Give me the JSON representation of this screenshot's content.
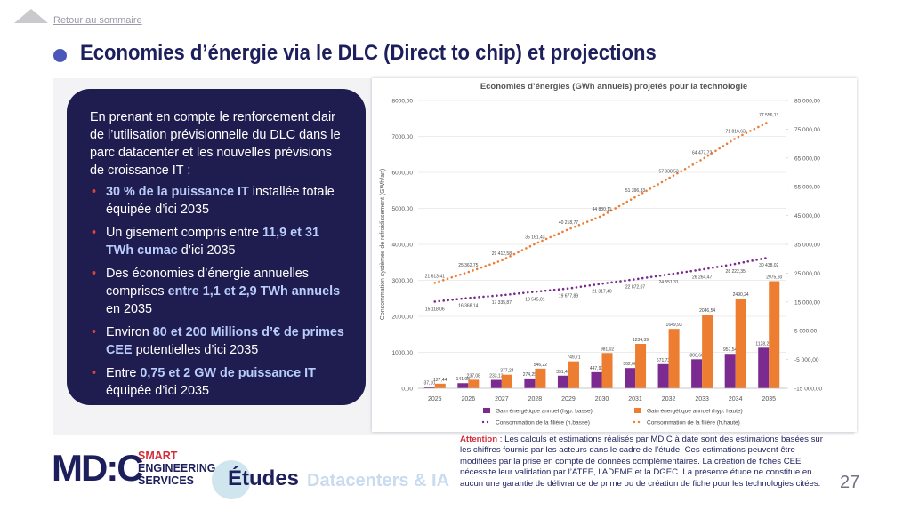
{
  "header": {
    "back_link": "Retour au sommaire",
    "title": "Economies d’énergie via le DLC (Direct to chip) et projections"
  },
  "summary": {
    "intro": "En prenant en compte le renforcement clair de l’utilisation prévisionnelle du DLC dans le parc datacenter et les nouvelles prévisions de croissance IT :",
    "bullets": [
      [
        {
          "text": "30 % de la puissance IT",
          "em": true
        },
        {
          "text": " installée totale équipée d’ici 2035",
          "em": false
        }
      ],
      [
        {
          "text": "Un gisement compris entre ",
          "em": false
        },
        {
          "text": "11,9 et 31 TWh cumac",
          "em": true
        },
        {
          "text": " d’ici 2035",
          "em": false
        }
      ],
      [
        {
          "text": "Des économies d’énergie annuelles comprises ",
          "em": false
        },
        {
          "text": "entre 1,1 et 2,9 TWh annuels",
          "em": true
        },
        {
          "text": " en 2035",
          "em": false
        }
      ],
      [
        {
          "text": "Environ ",
          "em": false
        },
        {
          "text": "80 et 200 Millions d’€ de primes CEE",
          "em": true
        },
        {
          "text": " potentielles d’ici 2035",
          "em": false
        }
      ],
      [
        {
          "text": "Entre ",
          "em": false
        },
        {
          "text": "0,75 et 2 GW de puissance IT",
          "em": true
        },
        {
          "text": " équipée d’ici 2035",
          "em": false
        }
      ]
    ]
  },
  "chart_data": {
    "type": "bar",
    "title": "Economies d’énergies (GWh annuels) projetés pour la technologie",
    "y_label": "Consommation systèmes de refroidissement (GWh/an)",
    "categories": [
      "2025",
      "2026",
      "2027",
      "2028",
      "2029",
      "2030",
      "2031",
      "2032",
      "2033",
      "2034",
      "2035"
    ],
    "ylim": [
      0,
      8000
    ],
    "yticks": [
      {
        "value": 0,
        "label": "0,00"
      },
      {
        "value": 1000,
        "label": "1000,00"
      },
      {
        "value": 2000,
        "label": "2000,00"
      },
      {
        "value": 3000,
        "label": "3000,00"
      },
      {
        "value": 4000,
        "label": "4000,00"
      },
      {
        "value": 5000,
        "label": "5000,00"
      },
      {
        "value": 6000,
        "label": "6000,00"
      },
      {
        "value": 7000,
        "label": "7000,00"
      },
      {
        "value": 8000,
        "label": "8000,00"
      }
    ],
    "y2lim": [
      -15000,
      85000
    ],
    "y2ticks": [
      {
        "value": -15000,
        "label": "-15 000,00"
      },
      {
        "value": -5000,
        "label": "-5 000,00"
      },
      {
        "value": 5000,
        "label": "5 000,00"
      },
      {
        "value": 15000,
        "label": "15 000,00"
      },
      {
        "value": 25000,
        "label": "25 000,00"
      },
      {
        "value": 35000,
        "label": "35 000,00"
      },
      {
        "value": 45000,
        "label": "45 000,00"
      },
      {
        "value": 55000,
        "label": "55 000,00"
      },
      {
        "value": 65000,
        "label": "65 000,00"
      },
      {
        "value": 75000,
        "label": "75 000,00"
      },
      {
        "value": 85000,
        "label": "85 000,00"
      }
    ],
    "series": [
      {
        "name": "Gain énergétique annuel (hyp. basse)",
        "type": "bar",
        "color": "#7b2a8f",
        "values": [
          37.1,
          141.98,
          233.13,
          274.25,
          351.48,
          447.91,
          562.66,
          671.73,
          806.66,
          957.54,
          1128.21
        ],
        "value_labels": [
          "37,10",
          "141,98",
          "233,13",
          "274,25",
          "351,48",
          "447,91",
          "562,66",
          "671,73",
          "806,66",
          "957,54",
          "1128,21"
        ]
      },
      {
        "name": "Gain énergétique annuel (hyp. haute)",
        "type": "bar",
        "color": "#ed7d31",
        "values": [
          127.44,
          237.08,
          377.24,
          546.22,
          749.71,
          981.02,
          1234.39,
          1649.93,
          2046.54,
          2490.24,
          2975.6
        ],
        "value_labels": [
          "127,44",
          "237,08",
          "377,24",
          "546,22",
          "749,71",
          "981,02",
          "1234,39",
          "1649,93",
          "2046,54",
          "2490,24",
          "2975,60"
        ]
      },
      {
        "name": "Consommation de la filière (h.basse)",
        "type": "line",
        "axis": "y2",
        "color": "#7b2a8f",
        "values": [
          15118.06,
          16368.14,
          17335.87,
          18545.01,
          19677.89,
          21317.4,
          22872.07,
          24551.31,
          26264.47,
          28222.35,
          30438.02
        ],
        "value_labels": [
          "15 118,06",
          "16 368,14",
          "17 335,87",
          "18 545,01",
          "19 677,89",
          "21 317,40",
          "22 872,07",
          "24 551,31",
          "26 264,47",
          "28 222,35",
          "30 438,02"
        ]
      },
      {
        "name": "Consommation de la filière (h.haute)",
        "type": "line",
        "axis": "y2",
        "color": "#ed7d31",
        "values": [
          21613.41,
          25362.75,
          29412.58,
          35161.43,
          40218.77,
          44880.11,
          51396.33,
          57938.53,
          64477.72,
          71816.63,
          77556.13
        ],
        "value_labels": [
          "21 613,41",
          "25 362,75",
          "29 412,58",
          "35 161,43",
          "40 218,77",
          "44 880,11",
          "51 396,33",
          "57 938,53",
          "64 477,72",
          "71 816,63",
          "77 556,13"
        ]
      }
    ]
  },
  "footer": {
    "logo": "MD:C",
    "logo_tagline": [
      "SMART",
      "ENGINEERING",
      "SERVICES"
    ],
    "section": "Études",
    "topic": "Datacenters & IA",
    "note_label": "Attention",
    "note_text": " : Les calculs et estimations réalisés par MD.C à date sont des estimations basées sur les chiffres fournis par les acteurs dans le cadre de l’étude. Ces estimations peuvent être modifiées par la prise en compte de données complémentaires. La création de fiches CEE nécessite leur validation par l’ATEE, l’ADEME et la DGEC. La présente étude ne constitue en aucun une garantie de délivrance de prime ou de création de fiche pour les technologies citées.",
    "page_number": "27"
  }
}
